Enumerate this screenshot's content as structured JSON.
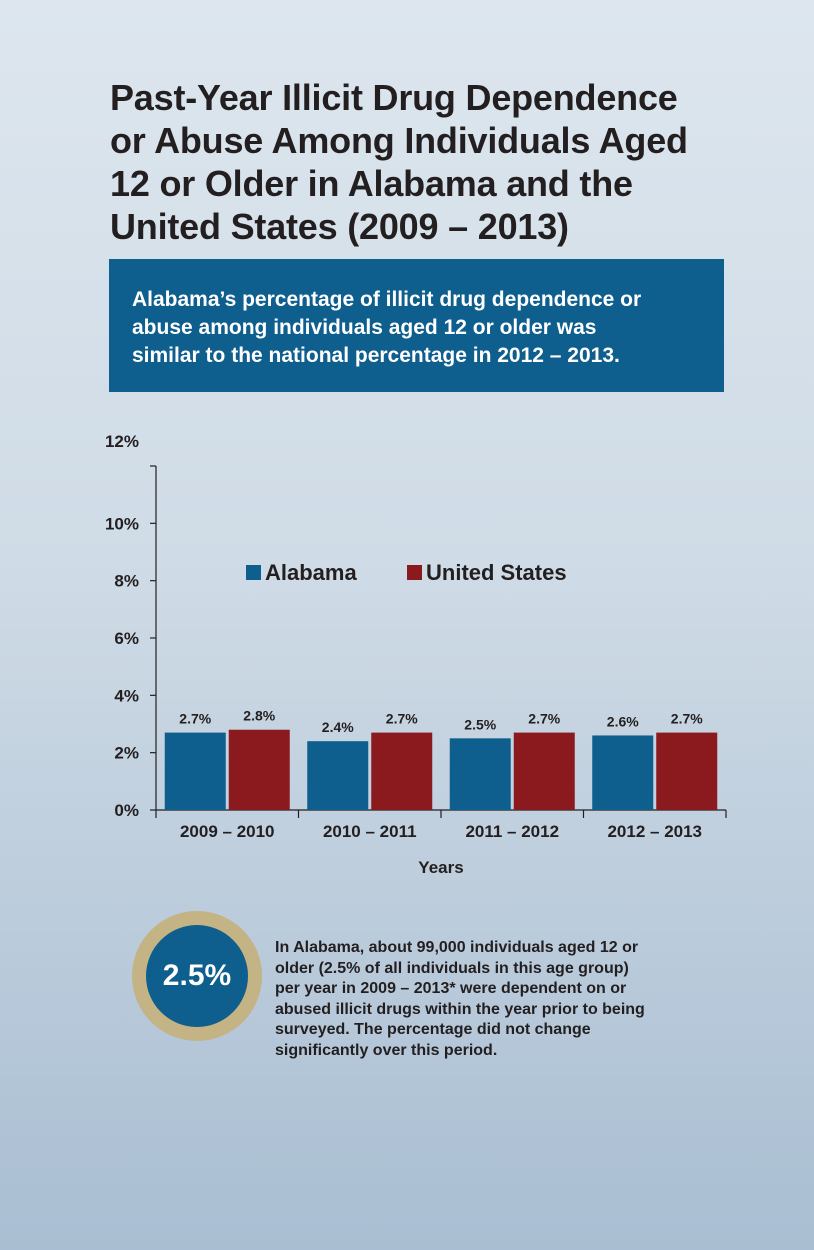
{
  "title_lines": [
    "Past-Year Illicit Drug Dependence",
    "or Abuse Among Individuals Aged",
    "12 or Older in Alabama and the",
    "United States (2009 – 2013)"
  ],
  "callout_lines": [
    "Alabama’s percentage of illicit drug dependence or",
    "abuse among individuals aged 12 or older was",
    "similar to the national percentage in 2012 – 2013."
  ],
  "chart_data": {
    "type": "bar",
    "categories": [
      "2009 – 2010",
      "2010 – 2011",
      "2011 – 2012",
      "2012 – 2013"
    ],
    "series": [
      {
        "name": "Alabama",
        "values": [
          2.7,
          2.4,
          2.5,
          2.6
        ],
        "labels": [
          "2.7%",
          "2.4%",
          "2.5%",
          "2.6%"
        ],
        "color": "#0e5e8e"
      },
      {
        "name": "United States",
        "values": [
          2.8,
          2.7,
          2.7,
          2.7
        ],
        "labels": [
          "2.8%",
          "2.7%",
          "2.7%",
          "2.7%"
        ],
        "color": "#8b1a1e"
      }
    ],
    "xlabel": "Years",
    "ylabel": "",
    "ylim": [
      0,
      12
    ],
    "yticks": [
      0,
      2,
      4,
      6,
      8,
      10,
      12
    ],
    "ytick_labels": [
      "0%",
      "2%",
      "4%",
      "6%",
      "8%",
      "10%",
      "12%"
    ],
    "grid": false,
    "legend": "top-center"
  },
  "badge_value": "2.5%",
  "summary_lines": [
    "In Alabama, about 99,000 individuals aged 12 or",
    "older (2.5% of all individuals in this age group)",
    "per year in 2009 – 2013* were dependent on or",
    "abused illicit drugs within the year prior to being",
    "surveyed. The percentage did not change",
    "significantly over this period."
  ],
  "colors": {
    "accent_blue": "#0e5e8e",
    "accent_red": "#8b1a1e",
    "badge_ring": "#c4b384"
  }
}
